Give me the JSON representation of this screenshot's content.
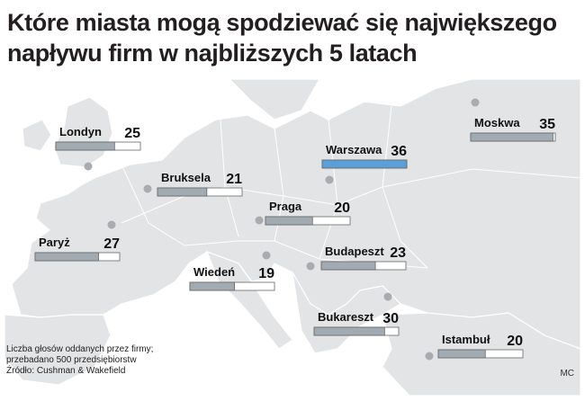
{
  "title": "Które miasta mogą spodziewać się największego napływu firm w najbliższych 5 latach",
  "chart_data": {
    "type": "bar",
    "title": "Które miasta mogą spodziewać się największego napływu firm w najbliższych 5 latach",
    "categories": [
      "Warszawa",
      "Moskwa",
      "Bukareszt",
      "Paryż",
      "Londyn",
      "Budapeszt",
      "Bruksela",
      "Praga",
      "Istambuł",
      "Wiedeń"
    ],
    "values": [
      36,
      35,
      30,
      27,
      25,
      23,
      21,
      20,
      20,
      19
    ],
    "max": 36,
    "highlight": "Warszawa",
    "colors": {
      "bar": "#a3abb2",
      "highlight": "#5b9fd8",
      "track": "#ffffff",
      "border": "#666666",
      "map": "#e3e4e5"
    }
  },
  "notes": [
    "Liczba głosów oddanych przez firmy;",
    "przebadano 500 przedsiębiorstw",
    "Źródło: Cushman & Wakefield"
  ],
  "credit": "MC"
}
